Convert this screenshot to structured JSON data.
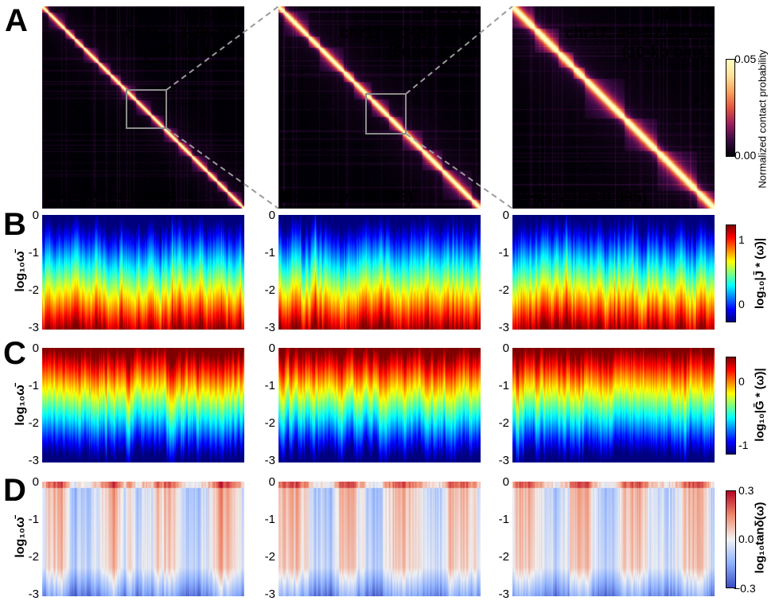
{
  "panels": {
    "a": "A",
    "b": "B",
    "c": "C",
    "d": "D"
  },
  "contact_maps": [
    {
      "cell": "mESCs",
      "region": "chr17: 3−95 Mb",
      "bins": "(250-kb bins)",
      "model": "PHi-C2 (",
      "r_symbol": "r",
      "r_value": " = 0.986)"
    },
    {
      "cell": "mESCs",
      "region": "chr17: 41−59.4 Mb",
      "bins": "(50-kb bins)",
      "model": "PHi-C2 (",
      "r_symbol": "r",
      "r_value": " = 0.998)"
    },
    {
      "cell": "mESCs",
      "region": "chr17: 49−52.68 Mb",
      "bins": "(10-kb bins)",
      "model": "PHi-C2 (",
      "r_symbol": "r",
      "r_value": " = 0.995)"
    }
  ],
  "colorbar_a": {
    "label": "Normalized contact probability",
    "max": "0.05",
    "min": "0.00",
    "colors": [
      "#fffcc0",
      "#fde29a",
      "#f9a25c",
      "#e3543e",
      "#9c1e5d",
      "#3b0a45",
      "#000004"
    ]
  },
  "y_axis_label": "log₁₀ω̄",
  "y_ticks": [
    "0",
    "-1",
    "-2",
    "-3"
  ],
  "colorbar_b": {
    "label": "log₁₀|J̄ * (ω̄)|",
    "ticks": [
      "1",
      "0"
    ],
    "colors": [
      "#7f0000",
      "#ff0000",
      "#ff7f00",
      "#ffff00",
      "#7fff7f",
      "#00ffff",
      "#007fff",
      "#0000ff",
      "#00007f"
    ]
  },
  "colorbar_c": {
    "label": "log₁₀|Ḡ * (ω̄)|",
    "ticks": [
      "0",
      "-1"
    ],
    "colors": [
      "#7f0000",
      "#ff0000",
      "#ff7f00",
      "#ffff00",
      "#7fff7f",
      "#00ffff",
      "#007fff",
      "#0000ff",
      "#00007f"
    ]
  },
  "colorbar_d": {
    "label": "log₁₀tanδ(ω̄)",
    "ticks": [
      "0.3",
      "0.0",
      "−0.3"
    ],
    "colors": [
      "#b40426",
      "#f08a6c",
      "#f2f2f2",
      "#8db0fe",
      "#3b4cc0"
    ]
  },
  "chart_data": [
    {
      "type": "heatmap",
      "title": "mESCs chr17: 3−95 Mb (250-kb bins)",
      "annotation": "PHi-C2 (r = 0.986)",
      "zlim": [
        0.0,
        0.05
      ]
    },
    {
      "type": "heatmap",
      "title": "mESCs chr17: 41−59.4 Mb (50-kb bins)",
      "annotation": "PHi-C2 (r = 0.998)",
      "zlim": [
        0.0,
        0.05
      ]
    },
    {
      "type": "heatmap",
      "title": "mESCs chr17: 49−52.68 Mb (10-kb bins)",
      "annotation": "PHi-C2 (r = 0.995)",
      "zlim": [
        0.0,
        0.05
      ]
    },
    {
      "type": "heatmap",
      "ylabel": "log₁₀ω̄",
      "ylim": [
        -3,
        0
      ],
      "colorbar": "log₁₀|J̄ * (ω̄)|"
    },
    {
      "type": "heatmap",
      "ylabel": "log₁₀ω̄",
      "ylim": [
        -3,
        0
      ],
      "colorbar": "log₁₀|Ḡ * (ω̄)|"
    },
    {
      "type": "heatmap",
      "ylabel": "log₁₀ω̄",
      "ylim": [
        -3,
        0
      ],
      "colorbar": "log₁₀tanδ(ω̄)",
      "zlim": [
        -0.3,
        0.3
      ]
    }
  ]
}
